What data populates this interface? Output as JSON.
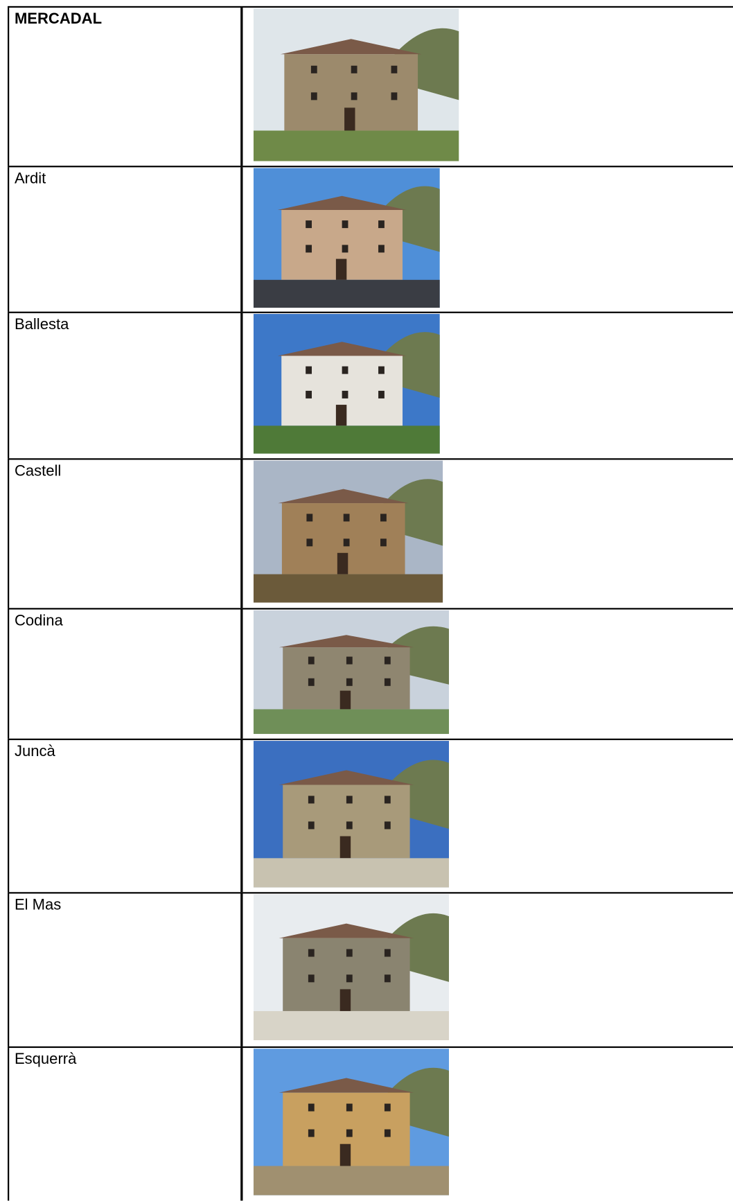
{
  "table": {
    "rows": [
      [
        "MERCADAL"
      ],
      [
        "Ardit"
      ],
      [
        "Ballesta"
      ],
      [
        "Castell"
      ],
      [
        "Codina"
      ],
      [
        "Juncà"
      ],
      [
        "El Mas"
      ],
      [
        "Esquerrà"
      ]
    ]
  }
}
